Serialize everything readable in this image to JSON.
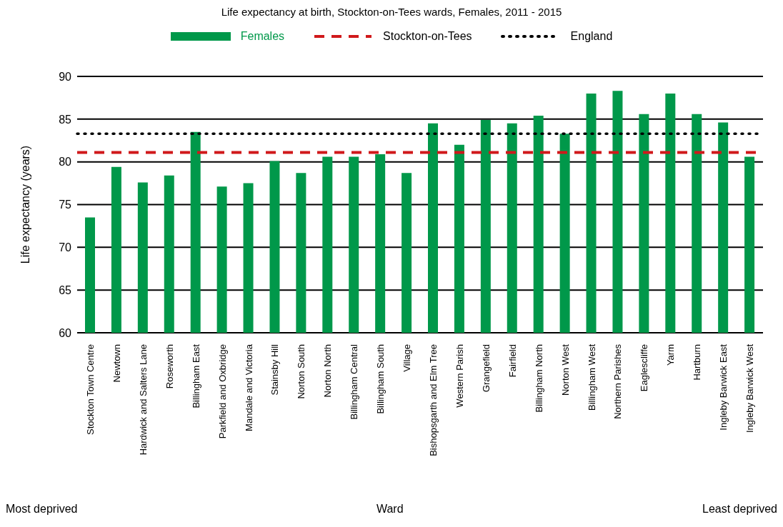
{
  "chart_data": {
    "type": "bar",
    "title": "Life expectancy at birth, Stockton-on-Tees wards, Females, 2011 - 2015",
    "xlabel": "Ward",
    "ylabel": "Life expectancy (years)",
    "annotations": [
      "Most deprived",
      "Least deprived"
    ],
    "categories": [
      "Stockton Town Centre",
      "Newtown",
      "Hardwick and Salters Lane",
      "Roseworth",
      "Billingham East",
      "Parkfield and Oxbridge",
      "Mandale and Victoria",
      "Stainsby Hill",
      "Norton South",
      "Norton North",
      "Billingham Central",
      "Billingham South",
      "Village",
      "Bishopsgarth and Elm Tree",
      "Western Parish",
      "Grangefield",
      "Fairfield",
      "Billingham North",
      "Norton West",
      "Billingham West",
      "Northern Parishes",
      "Eaglescliffe",
      "Yarm",
      "Hartburn",
      "Ingleby Barwick East",
      "Ingleby Barwick West"
    ],
    "series": [
      {
        "name": "Females",
        "color": "#00984a",
        "values": [
          73.5,
          79.4,
          77.6,
          78.4,
          83.5,
          77.1,
          77.5,
          80.1,
          78.7,
          80.6,
          80.6,
          80.9,
          78.7,
          84.5,
          82.0,
          84.9,
          84.5,
          85.4,
          83.3,
          88.0,
          88.3,
          85.6,
          88.0,
          85.6,
          84.6,
          80.6
        ]
      }
    ],
    "ref_lines": [
      {
        "axis": "y",
        "value": 81.1,
        "label": "Stockton-on-Tees",
        "color": "#d0191b",
        "line_style": "dashed"
      },
      {
        "axis": "y",
        "value": 83.3,
        "label": "England",
        "color": "#000000",
        "line_style": "dotted"
      }
    ],
    "ylim": [
      60,
      90
    ],
    "yticks": [
      60,
      65,
      70,
      75,
      80,
      85,
      90
    ],
    "grid": "y",
    "legend": "top"
  }
}
